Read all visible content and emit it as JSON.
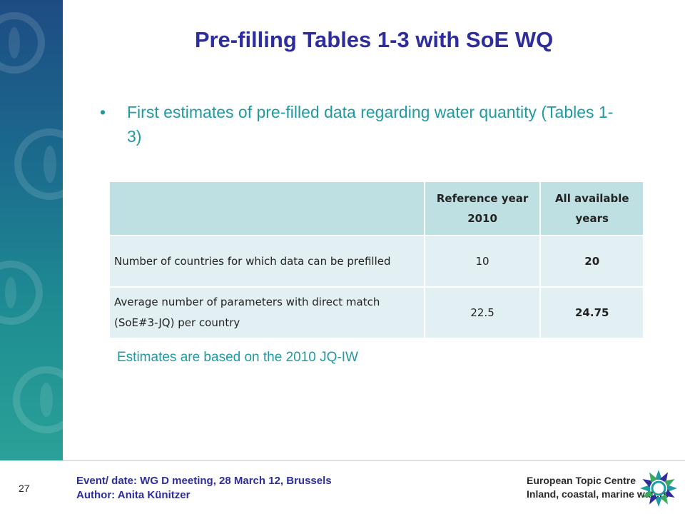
{
  "title": "Pre-filling Tables 1-3 with SoE WQ",
  "bullet": {
    "symbol": "•",
    "text": "First estimates of pre-filled data regarding water quantity (Tables 1-3)"
  },
  "table": {
    "headers": [
      "",
      "Reference year 2010",
      "All available years"
    ],
    "rows": [
      {
        "label": "Number of countries for which data can be prefilled",
        "reference": "10",
        "all": "20"
      },
      {
        "label": "Average number of parameters with direct match (SoE#3-JQ) per country",
        "reference": "22.5",
        "all": "24.75"
      }
    ]
  },
  "note": "Estimates are based on the 2010 JQ-IW",
  "footer": {
    "page_number": "27",
    "event": "Event/ date: WG D meeting, 28 March 12, Brussels",
    "author": "Author: Anita Künitzer",
    "org_line1": "European Topic Centre",
    "org_line2": "Inland, coastal, marine waters"
  },
  "colors": {
    "title": "#2d2d9e",
    "accent": "#1f9aa3",
    "table_header": "#bfe0e2",
    "table_body": "#e3f0f3"
  }
}
